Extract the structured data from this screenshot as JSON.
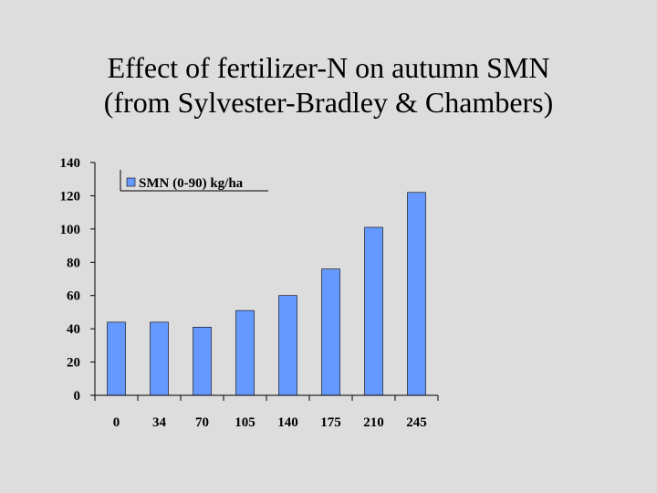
{
  "slide": {
    "title_line1": "Effect of fertilizer-N on autumn SMN",
    "title_line2": "(from Sylvester-Bradley & Chambers)"
  },
  "chart_data": {
    "type": "bar",
    "categories": [
      "0",
      "34",
      "70",
      "105",
      "140",
      "175",
      "210",
      "245"
    ],
    "series": [
      {
        "name": "SMN (0-90) kg/ha",
        "values": [
          44,
          44,
          41,
          51,
          60,
          76,
          101,
          122
        ],
        "color": "#6699ff"
      }
    ],
    "ylim": [
      0,
      140
    ],
    "yticks": [
      "0",
      "20",
      "40",
      "60",
      "80",
      "100",
      "120",
      "140"
    ],
    "grid": false,
    "legend_position": "top-left"
  }
}
